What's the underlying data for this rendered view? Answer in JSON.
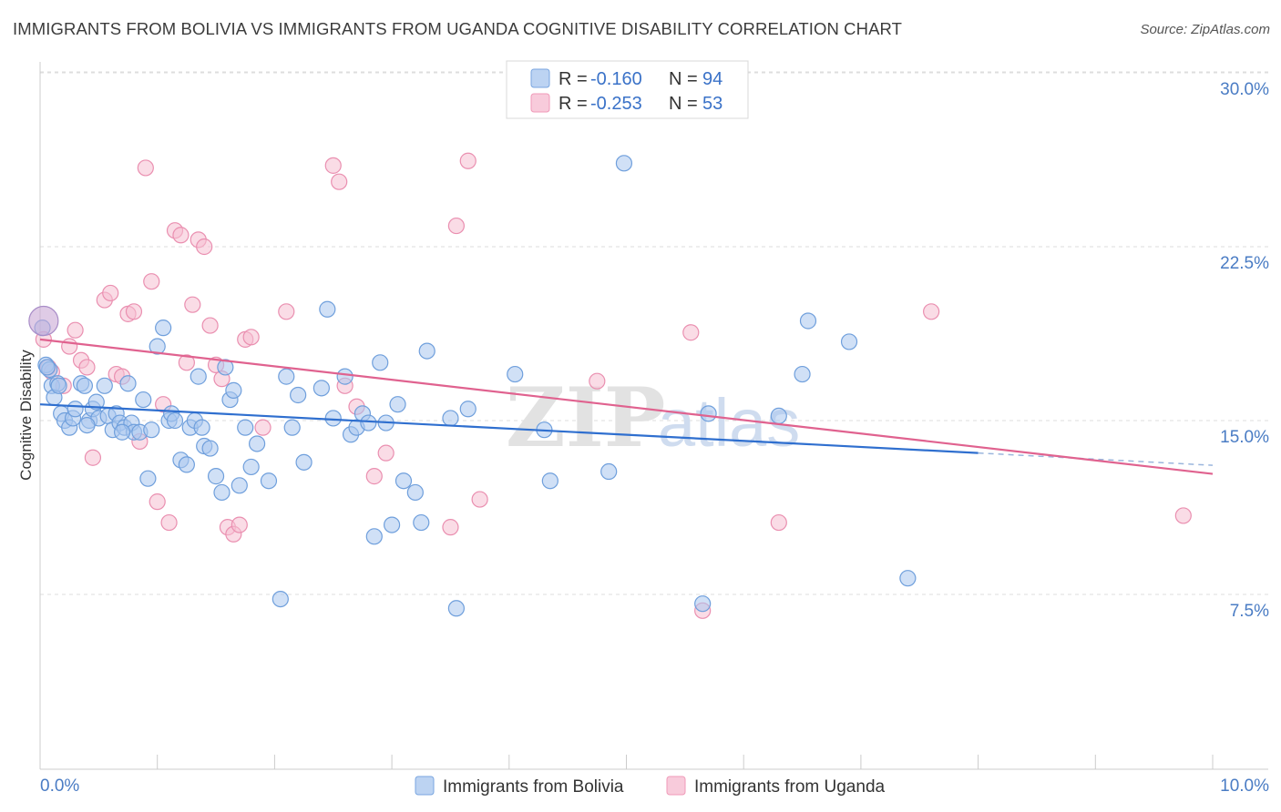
{
  "header": {
    "title": "IMMIGRANTS FROM BOLIVIA VS IMMIGRANTS FROM UGANDA COGNITIVE DISABILITY CORRELATION CHART",
    "source": "Source: ZipAtlas.com"
  },
  "watermark": {
    "zip": "ZIP",
    "atlas": "atlas"
  },
  "legend": {
    "r_label": "R =",
    "n_label": "N =",
    "entries": [
      {
        "r": "-0.160",
        "n": "94",
        "color": "#7aa6e0"
      },
      {
        "r": "-0.253",
        "n": "53",
        "color": "#f09ab8"
      }
    ]
  },
  "colors": {
    "bolivia_fill": "#a9c6ee",
    "bolivia_stroke": "#6f9fdc",
    "bolivia_line": "#2f6fcf",
    "uganda_fill": "#f6bfd1",
    "uganda_stroke": "#ea8fb0",
    "uganda_line": "#e0628f",
    "grid": "#dddddd",
    "axis_tick_text": "#4a7cc4"
  },
  "chart_data": {
    "type": "scatter",
    "title": "IMMIGRANTS FROM BOLIVIA VS IMMIGRANTS FROM UGANDA COGNITIVE DISABILITY CORRELATION CHART",
    "xlabel": "",
    "ylabel": "Cognitive Disability",
    "xlim": [
      0,
      10
    ],
    "ylim": [
      0,
      31
    ],
    "x_tick_labels": [
      "0.0%",
      "10.0%"
    ],
    "y_ticks": [
      7.5,
      15.0,
      22.5,
      30.0
    ],
    "y_tick_labels": [
      "7.5%",
      "15.0%",
      "22.5%",
      "30.0%"
    ],
    "grid": true,
    "legend_position": "top-center",
    "series": [
      {
        "name": "Immigrants from Bolivia",
        "r": -0.16,
        "n": 94,
        "trend": {
          "x0": 0.0,
          "y0": 15.7,
          "x1": 8.0,
          "y1": 13.6,
          "dash_to_x": 10.0,
          "dash_to_y": 13.07
        },
        "points": [
          [
            0.02,
            19.0
          ],
          [
            0.05,
            17.4
          ],
          [
            0.08,
            17.2
          ],
          [
            0.1,
            16.5
          ],
          [
            0.12,
            16.0
          ],
          [
            0.15,
            16.6
          ],
          [
            0.18,
            15.3
          ],
          [
            0.21,
            15.0
          ],
          [
            0.25,
            14.7
          ],
          [
            0.28,
            15.1
          ],
          [
            0.3,
            15.5
          ],
          [
            0.35,
            16.6
          ],
          [
            0.38,
            16.5
          ],
          [
            0.42,
            15.0
          ],
          [
            0.45,
            15.5
          ],
          [
            0.48,
            15.8
          ],
          [
            0.5,
            15.1
          ],
          [
            0.55,
            16.5
          ],
          [
            0.58,
            15.2
          ],
          [
            0.62,
            14.6
          ],
          [
            0.65,
            15.3
          ],
          [
            0.68,
            14.9
          ],
          [
            0.72,
            14.7
          ],
          [
            0.75,
            16.6
          ],
          [
            0.78,
            14.9
          ],
          [
            0.8,
            14.5
          ],
          [
            0.85,
            14.5
          ],
          [
            0.88,
            15.9
          ],
          [
            0.92,
            12.5
          ],
          [
            0.95,
            14.6
          ],
          [
            1.0,
            18.2
          ],
          [
            1.05,
            19.0
          ],
          [
            1.1,
            15.0
          ],
          [
            1.12,
            15.3
          ],
          [
            1.15,
            15.0
          ],
          [
            1.2,
            13.3
          ],
          [
            1.25,
            13.1
          ],
          [
            1.28,
            14.7
          ],
          [
            1.32,
            15.0
          ],
          [
            1.35,
            16.9
          ],
          [
            1.38,
            14.7
          ],
          [
            1.4,
            13.9
          ],
          [
            1.45,
            13.8
          ],
          [
            1.5,
            12.6
          ],
          [
            1.55,
            11.9
          ],
          [
            1.58,
            17.3
          ],
          [
            1.62,
            15.9
          ],
          [
            1.65,
            16.3
          ],
          [
            1.7,
            12.2
          ],
          [
            1.75,
            14.7
          ],
          [
            1.8,
            13.0
          ],
          [
            1.85,
            14.0
          ],
          [
            1.95,
            12.4
          ],
          [
            2.05,
            7.3
          ],
          [
            2.1,
            16.9
          ],
          [
            2.15,
            14.7
          ],
          [
            2.2,
            16.1
          ],
          [
            2.25,
            13.2
          ],
          [
            2.4,
            16.4
          ],
          [
            2.45,
            19.8
          ],
          [
            2.5,
            15.1
          ],
          [
            2.6,
            16.9
          ],
          [
            2.65,
            14.4
          ],
          [
            2.7,
            14.7
          ],
          [
            2.75,
            15.3
          ],
          [
            2.8,
            14.9
          ],
          [
            2.85,
            10.0
          ],
          [
            2.9,
            17.5
          ],
          [
            2.95,
            14.9
          ],
          [
            3.0,
            10.5
          ],
          [
            3.05,
            15.7
          ],
          [
            3.1,
            12.4
          ],
          [
            3.2,
            11.9
          ],
          [
            3.25,
            10.6
          ],
          [
            3.3,
            18.0
          ],
          [
            3.5,
            15.1
          ],
          [
            3.55,
            6.9
          ],
          [
            3.65,
            15.5
          ],
          [
            4.05,
            17.0
          ],
          [
            4.3,
            14.6
          ],
          [
            4.35,
            12.4
          ],
          [
            4.85,
            12.8
          ],
          [
            4.98,
            26.1
          ],
          [
            5.65,
            7.1
          ],
          [
            5.7,
            15.3
          ],
          [
            6.3,
            15.2
          ],
          [
            6.5,
            17.0
          ],
          [
            6.55,
            19.3
          ],
          [
            6.9,
            18.4
          ],
          [
            7.4,
            8.2
          ],
          [
            0.06,
            17.3
          ],
          [
            0.16,
            16.5
          ],
          [
            0.4,
            14.8
          ],
          [
            0.7,
            14.5
          ]
        ]
      },
      {
        "name": "Immigrants from Uganda",
        "r": -0.253,
        "n": 53,
        "trend": {
          "x0": 0.0,
          "y0": 18.5,
          "x1": 10.0,
          "y1": 12.7
        },
        "points": [
          [
            0.03,
            18.5
          ],
          [
            0.07,
            17.3
          ],
          [
            0.1,
            17.1
          ],
          [
            0.2,
            16.5
          ],
          [
            0.25,
            18.2
          ],
          [
            0.3,
            18.9
          ],
          [
            0.35,
            17.6
          ],
          [
            0.4,
            17.3
          ],
          [
            0.45,
            13.4
          ],
          [
            0.55,
            20.2
          ],
          [
            0.6,
            20.5
          ],
          [
            0.65,
            17.0
          ],
          [
            0.7,
            16.9
          ],
          [
            0.75,
            19.6
          ],
          [
            0.8,
            19.7
          ],
          [
            0.85,
            14.1
          ],
          [
            0.9,
            25.9
          ],
          [
            0.95,
            21.0
          ],
          [
            1.0,
            11.5
          ],
          [
            1.05,
            15.7
          ],
          [
            1.1,
            10.6
          ],
          [
            1.15,
            23.2
          ],
          [
            1.2,
            23.0
          ],
          [
            1.25,
            17.5
          ],
          [
            1.3,
            20.0
          ],
          [
            1.35,
            22.8
          ],
          [
            1.4,
            22.5
          ],
          [
            1.45,
            19.1
          ],
          [
            1.5,
            17.4
          ],
          [
            1.55,
            16.8
          ],
          [
            1.6,
            10.4
          ],
          [
            1.65,
            10.1
          ],
          [
            1.7,
            10.5
          ],
          [
            1.75,
            18.5
          ],
          [
            1.8,
            18.6
          ],
          [
            1.9,
            14.7
          ],
          [
            2.1,
            19.7
          ],
          [
            2.5,
            26.0
          ],
          [
            2.55,
            25.3
          ],
          [
            2.6,
            16.5
          ],
          [
            2.7,
            15.6
          ],
          [
            2.85,
            12.6
          ],
          [
            2.95,
            13.6
          ],
          [
            3.5,
            10.4
          ],
          [
            3.55,
            23.4
          ],
          [
            3.65,
            26.2
          ],
          [
            3.75,
            11.6
          ],
          [
            4.75,
            16.7
          ],
          [
            5.55,
            18.8
          ],
          [
            5.65,
            6.8
          ],
          [
            6.3,
            10.6
          ],
          [
            7.6,
            19.7
          ],
          [
            9.75,
            10.9
          ]
        ]
      }
    ]
  },
  "bottom_legend": {
    "items": [
      {
        "label": "Immigrants from Bolivia"
      },
      {
        "label": "Immigrants from Uganda"
      }
    ]
  }
}
